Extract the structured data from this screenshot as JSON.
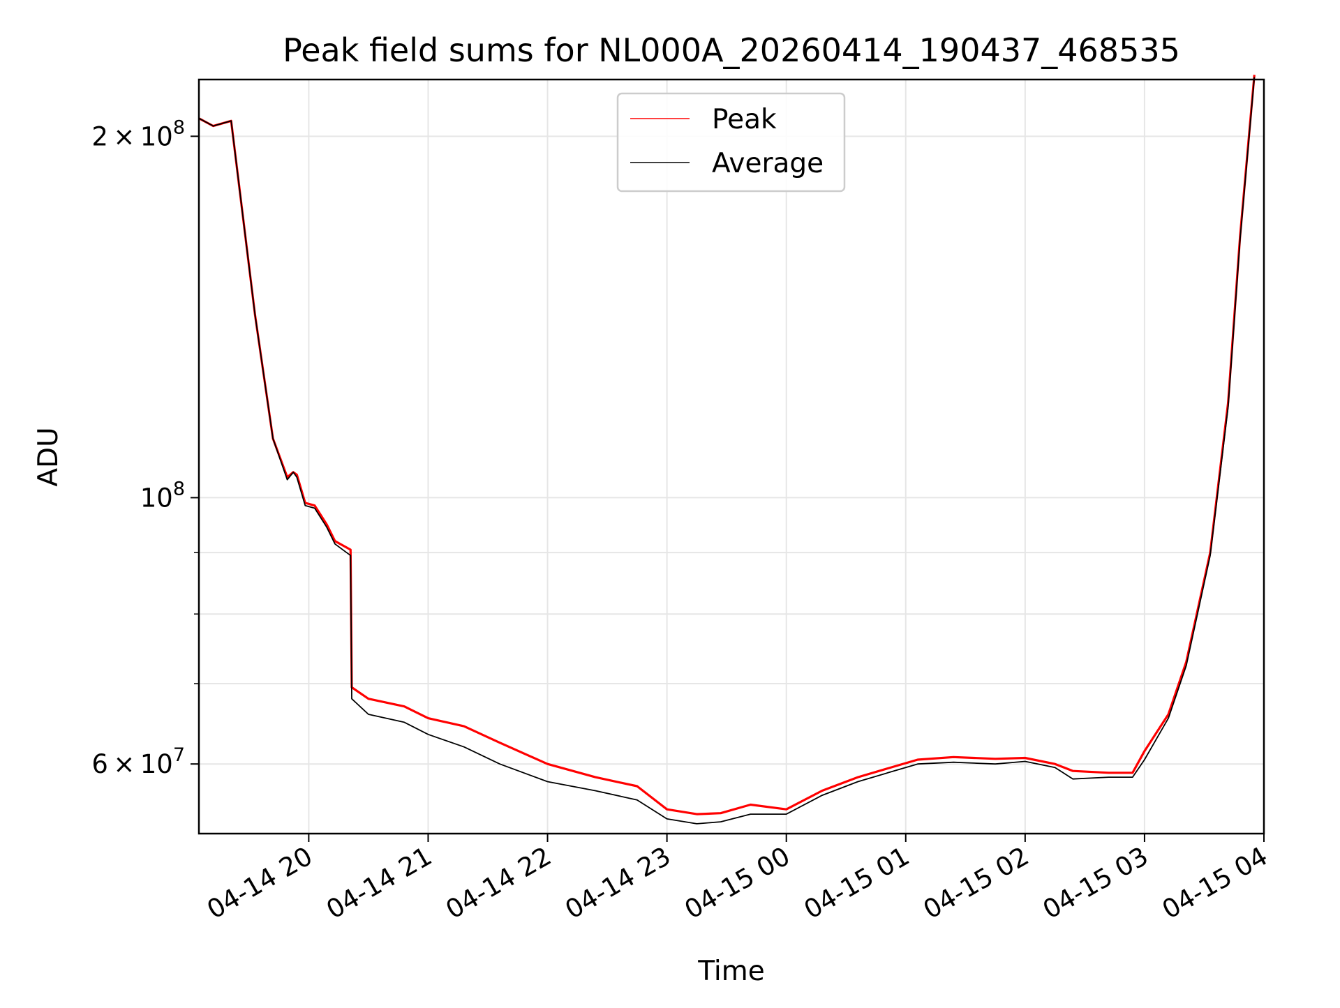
{
  "chart_data": {
    "type": "line",
    "title": "Peak field sums for NL000A_20260414_190437_468535",
    "xlabel": "Time",
    "ylabel": "ADU",
    "yscale": "log",
    "xlim_hours": [
      19.08,
      28.0
    ],
    "ylim": [
      52500000,
      223000000
    ],
    "grid": true,
    "legend_position": "upper center",
    "x_ticks": [
      {
        "hour": 20,
        "label": "04-14 20"
      },
      {
        "hour": 21,
        "label": "04-14 21"
      },
      {
        "hour": 22,
        "label": "04-14 22"
      },
      {
        "hour": 23,
        "label": "04-14 23"
      },
      {
        "hour": 24,
        "label": "04-15 00"
      },
      {
        "hour": 25,
        "label": "04-15 01"
      },
      {
        "hour": 26,
        "label": "04-15 02"
      },
      {
        "hour": 27,
        "label": "04-15 03"
      },
      {
        "hour": 28,
        "label": "04-15 04"
      }
    ],
    "y_major_ticks": [
      {
        "value": 60000000,
        "mantissa": "6",
        "exponent": "7"
      },
      {
        "value": 100000000,
        "mantissa": "",
        "exponent": "8"
      },
      {
        "value": 200000000,
        "mantissa": "2",
        "exponent": "8"
      }
    ],
    "y_minor_ticks": [
      70000000,
      80000000,
      90000000
    ],
    "series": [
      {
        "name": "Peak",
        "color": "#ff0000",
        "x_hours": [
          19.08,
          19.2,
          19.35,
          19.55,
          19.7,
          19.82,
          19.87,
          19.9,
          19.97,
          20.05,
          20.15,
          20.22,
          20.35,
          20.36,
          20.5,
          20.8,
          21.0,
          21.3,
          21.6,
          22.0,
          22.4,
          22.75,
          23.0,
          23.25,
          23.45,
          23.7,
          24.0,
          24.3,
          24.6,
          24.85,
          25.1,
          25.4,
          25.75,
          26.0,
          26.25,
          26.4,
          26.7,
          26.9,
          27.0,
          27.2,
          27.35,
          27.55,
          27.7,
          27.8,
          27.92
        ],
        "values": [
          207000000,
          204000000,
          206000000,
          142000000,
          112000000,
          104000000,
          105000000,
          104500000,
          99000000,
          98500000,
          95000000,
          92000000,
          90500000,
          69500000,
          68000000,
          67000000,
          65500000,
          64500000,
          62500000,
          60000000,
          58500000,
          57500000,
          55000000,
          54500000,
          54600000,
          55500000,
          55000000,
          57000000,
          58500000,
          59500000,
          60500000,
          60800000,
          60600000,
          60700000,
          60000000,
          59200000,
          59000000,
          59000000,
          61500000,
          66000000,
          73000000,
          90000000,
          120000000,
          165000000,
          225000000
        ]
      },
      {
        "name": "Average",
        "color": "#000000",
        "x_hours": [
          19.08,
          19.2,
          19.35,
          19.55,
          19.7,
          19.82,
          19.87,
          19.9,
          19.97,
          20.05,
          20.15,
          20.22,
          20.35,
          20.36,
          20.5,
          20.8,
          21.0,
          21.3,
          21.6,
          22.0,
          22.4,
          22.75,
          23.0,
          23.25,
          23.45,
          23.7,
          24.0,
          24.3,
          24.6,
          24.85,
          25.1,
          25.4,
          25.75,
          26.0,
          26.25,
          26.4,
          26.7,
          26.9,
          27.0,
          27.2,
          27.35,
          27.55,
          27.7,
          27.8,
          27.92
        ],
        "values": [
          207000000,
          204000000,
          206000000,
          142000000,
          112000000,
          103500000,
          105000000,
          104000000,
          98500000,
          98000000,
          94500000,
          91500000,
          89500000,
          68000000,
          66000000,
          65000000,
          63500000,
          62000000,
          60000000,
          58000000,
          57000000,
          56000000,
          54000000,
          53500000,
          53700000,
          54500000,
          54500000,
          56500000,
          58000000,
          59000000,
          60000000,
          60200000,
          60000000,
          60300000,
          59600000,
          58300000,
          58500000,
          58500000,
          60500000,
          65500000,
          72500000,
          89500000,
          119000000,
          164000000,
          224000000
        ]
      }
    ]
  }
}
